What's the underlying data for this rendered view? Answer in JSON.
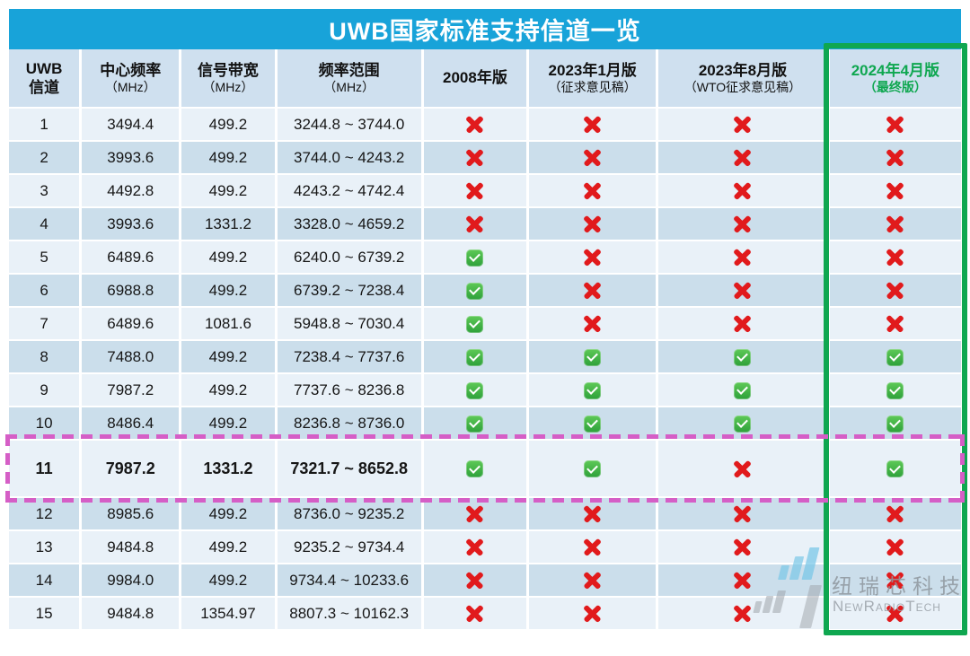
{
  "watermark": {
    "cn": "纽瑞芯科技",
    "en": "NewRadioTech"
  },
  "colors": {
    "title_bar": "#18a3d9",
    "header_bg": "#cfe0ef",
    "row_light": "#e9f1f8",
    "row_dark": "#cbdeeb",
    "final_column_accent": "#0fa750",
    "highlight_row_border": "#d55ec6",
    "cross_red": "#e11a1c",
    "check_green": "#3bab44",
    "title_text": "#ffffff"
  },
  "chart_data": {
    "type": "table",
    "title": "UWB国家标准支持信道一览",
    "columns": [
      {
        "line1": "UWB",
        "line2": "信道"
      },
      {
        "line1": "中心频率",
        "line2": "（MHz）"
      },
      {
        "line1": "信号带宽",
        "line2": "（MHz）"
      },
      {
        "line1": "频率范围",
        "line2": "（MHz）"
      },
      {
        "line1": "2008年版",
        "line2": ""
      },
      {
        "line1": "2023年1月版",
        "line2": "（征求意见稿）"
      },
      {
        "line1": "2023年8月版",
        "line2": "（WTO征求意见稿）"
      },
      {
        "line1": "2024年4月版",
        "line2": "（最终版）"
      }
    ],
    "support_editions": [
      "2008年版",
      "2023年1月版（征求意见稿）",
      "2023年8月版（WTO征求意见稿）",
      "2024年4月版（最终版）"
    ],
    "rows": [
      {
        "channel": "1",
        "center_mhz": "3494.4",
        "bandwidth_mhz": "499.2",
        "range_mhz": "3244.8 ~ 3744.0",
        "supported": [
          false,
          false,
          false,
          false
        ],
        "highlight": false
      },
      {
        "channel": "2",
        "center_mhz": "3993.6",
        "bandwidth_mhz": "499.2",
        "range_mhz": "3744.0 ~ 4243.2",
        "supported": [
          false,
          false,
          false,
          false
        ],
        "highlight": false
      },
      {
        "channel": "3",
        "center_mhz": "4492.8",
        "bandwidth_mhz": "499.2",
        "range_mhz": "4243.2 ~ 4742.4",
        "supported": [
          false,
          false,
          false,
          false
        ],
        "highlight": false
      },
      {
        "channel": "4",
        "center_mhz": "3993.6",
        "bandwidth_mhz": "1331.2",
        "range_mhz": "3328.0 ~ 4659.2",
        "supported": [
          false,
          false,
          false,
          false
        ],
        "highlight": false
      },
      {
        "channel": "5",
        "center_mhz": "6489.6",
        "bandwidth_mhz": "499.2",
        "range_mhz": "6240.0 ~ 6739.2",
        "supported": [
          true,
          false,
          false,
          false
        ],
        "highlight": false
      },
      {
        "channel": "6",
        "center_mhz": "6988.8",
        "bandwidth_mhz": "499.2",
        "range_mhz": "6739.2 ~ 7238.4",
        "supported": [
          true,
          false,
          false,
          false
        ],
        "highlight": false
      },
      {
        "channel": "7",
        "center_mhz": "6489.6",
        "bandwidth_mhz": "1081.6",
        "range_mhz": "5948.8 ~ 7030.4",
        "supported": [
          true,
          false,
          false,
          false
        ],
        "highlight": false
      },
      {
        "channel": "8",
        "center_mhz": "7488.0",
        "bandwidth_mhz": "499.2",
        "range_mhz": "7238.4 ~ 7737.6",
        "supported": [
          true,
          true,
          true,
          true
        ],
        "highlight": false
      },
      {
        "channel": "9",
        "center_mhz": "7987.2",
        "bandwidth_mhz": "499.2",
        "range_mhz": "7737.6 ~ 8236.8",
        "supported": [
          true,
          true,
          true,
          true
        ],
        "highlight": false
      },
      {
        "channel": "10",
        "center_mhz": "8486.4",
        "bandwidth_mhz": "499.2",
        "range_mhz": "8236.8 ~ 8736.0",
        "supported": [
          true,
          true,
          true,
          true
        ],
        "highlight": false
      },
      {
        "channel": "11",
        "center_mhz": "7987.2",
        "bandwidth_mhz": "1331.2",
        "range_mhz": "7321.7 ~ 8652.8",
        "supported": [
          true,
          true,
          false,
          true
        ],
        "highlight": true
      },
      {
        "channel": "12",
        "center_mhz": "8985.6",
        "bandwidth_mhz": "499.2",
        "range_mhz": "8736.0 ~ 9235.2",
        "supported": [
          false,
          false,
          false,
          false
        ],
        "highlight": false
      },
      {
        "channel": "13",
        "center_mhz": "9484.8",
        "bandwidth_mhz": "499.2",
        "range_mhz": "9235.2 ~ 9734.4",
        "supported": [
          false,
          false,
          false,
          false
        ],
        "highlight": false
      },
      {
        "channel": "14",
        "center_mhz": "9984.0",
        "bandwidth_mhz": "499.2",
        "range_mhz": "9734.4 ~ 10233.6",
        "supported": [
          false,
          false,
          false,
          false
        ],
        "highlight": false
      },
      {
        "channel": "15",
        "center_mhz": "9484.8",
        "bandwidth_mhz": "1354.97",
        "range_mhz": "8807.3 ~ 10162.3",
        "supported": [
          false,
          false,
          false,
          false
        ],
        "highlight": false
      }
    ],
    "highlight": {
      "row_channel": "11",
      "column": "2024年4月版（最终版）"
    }
  }
}
